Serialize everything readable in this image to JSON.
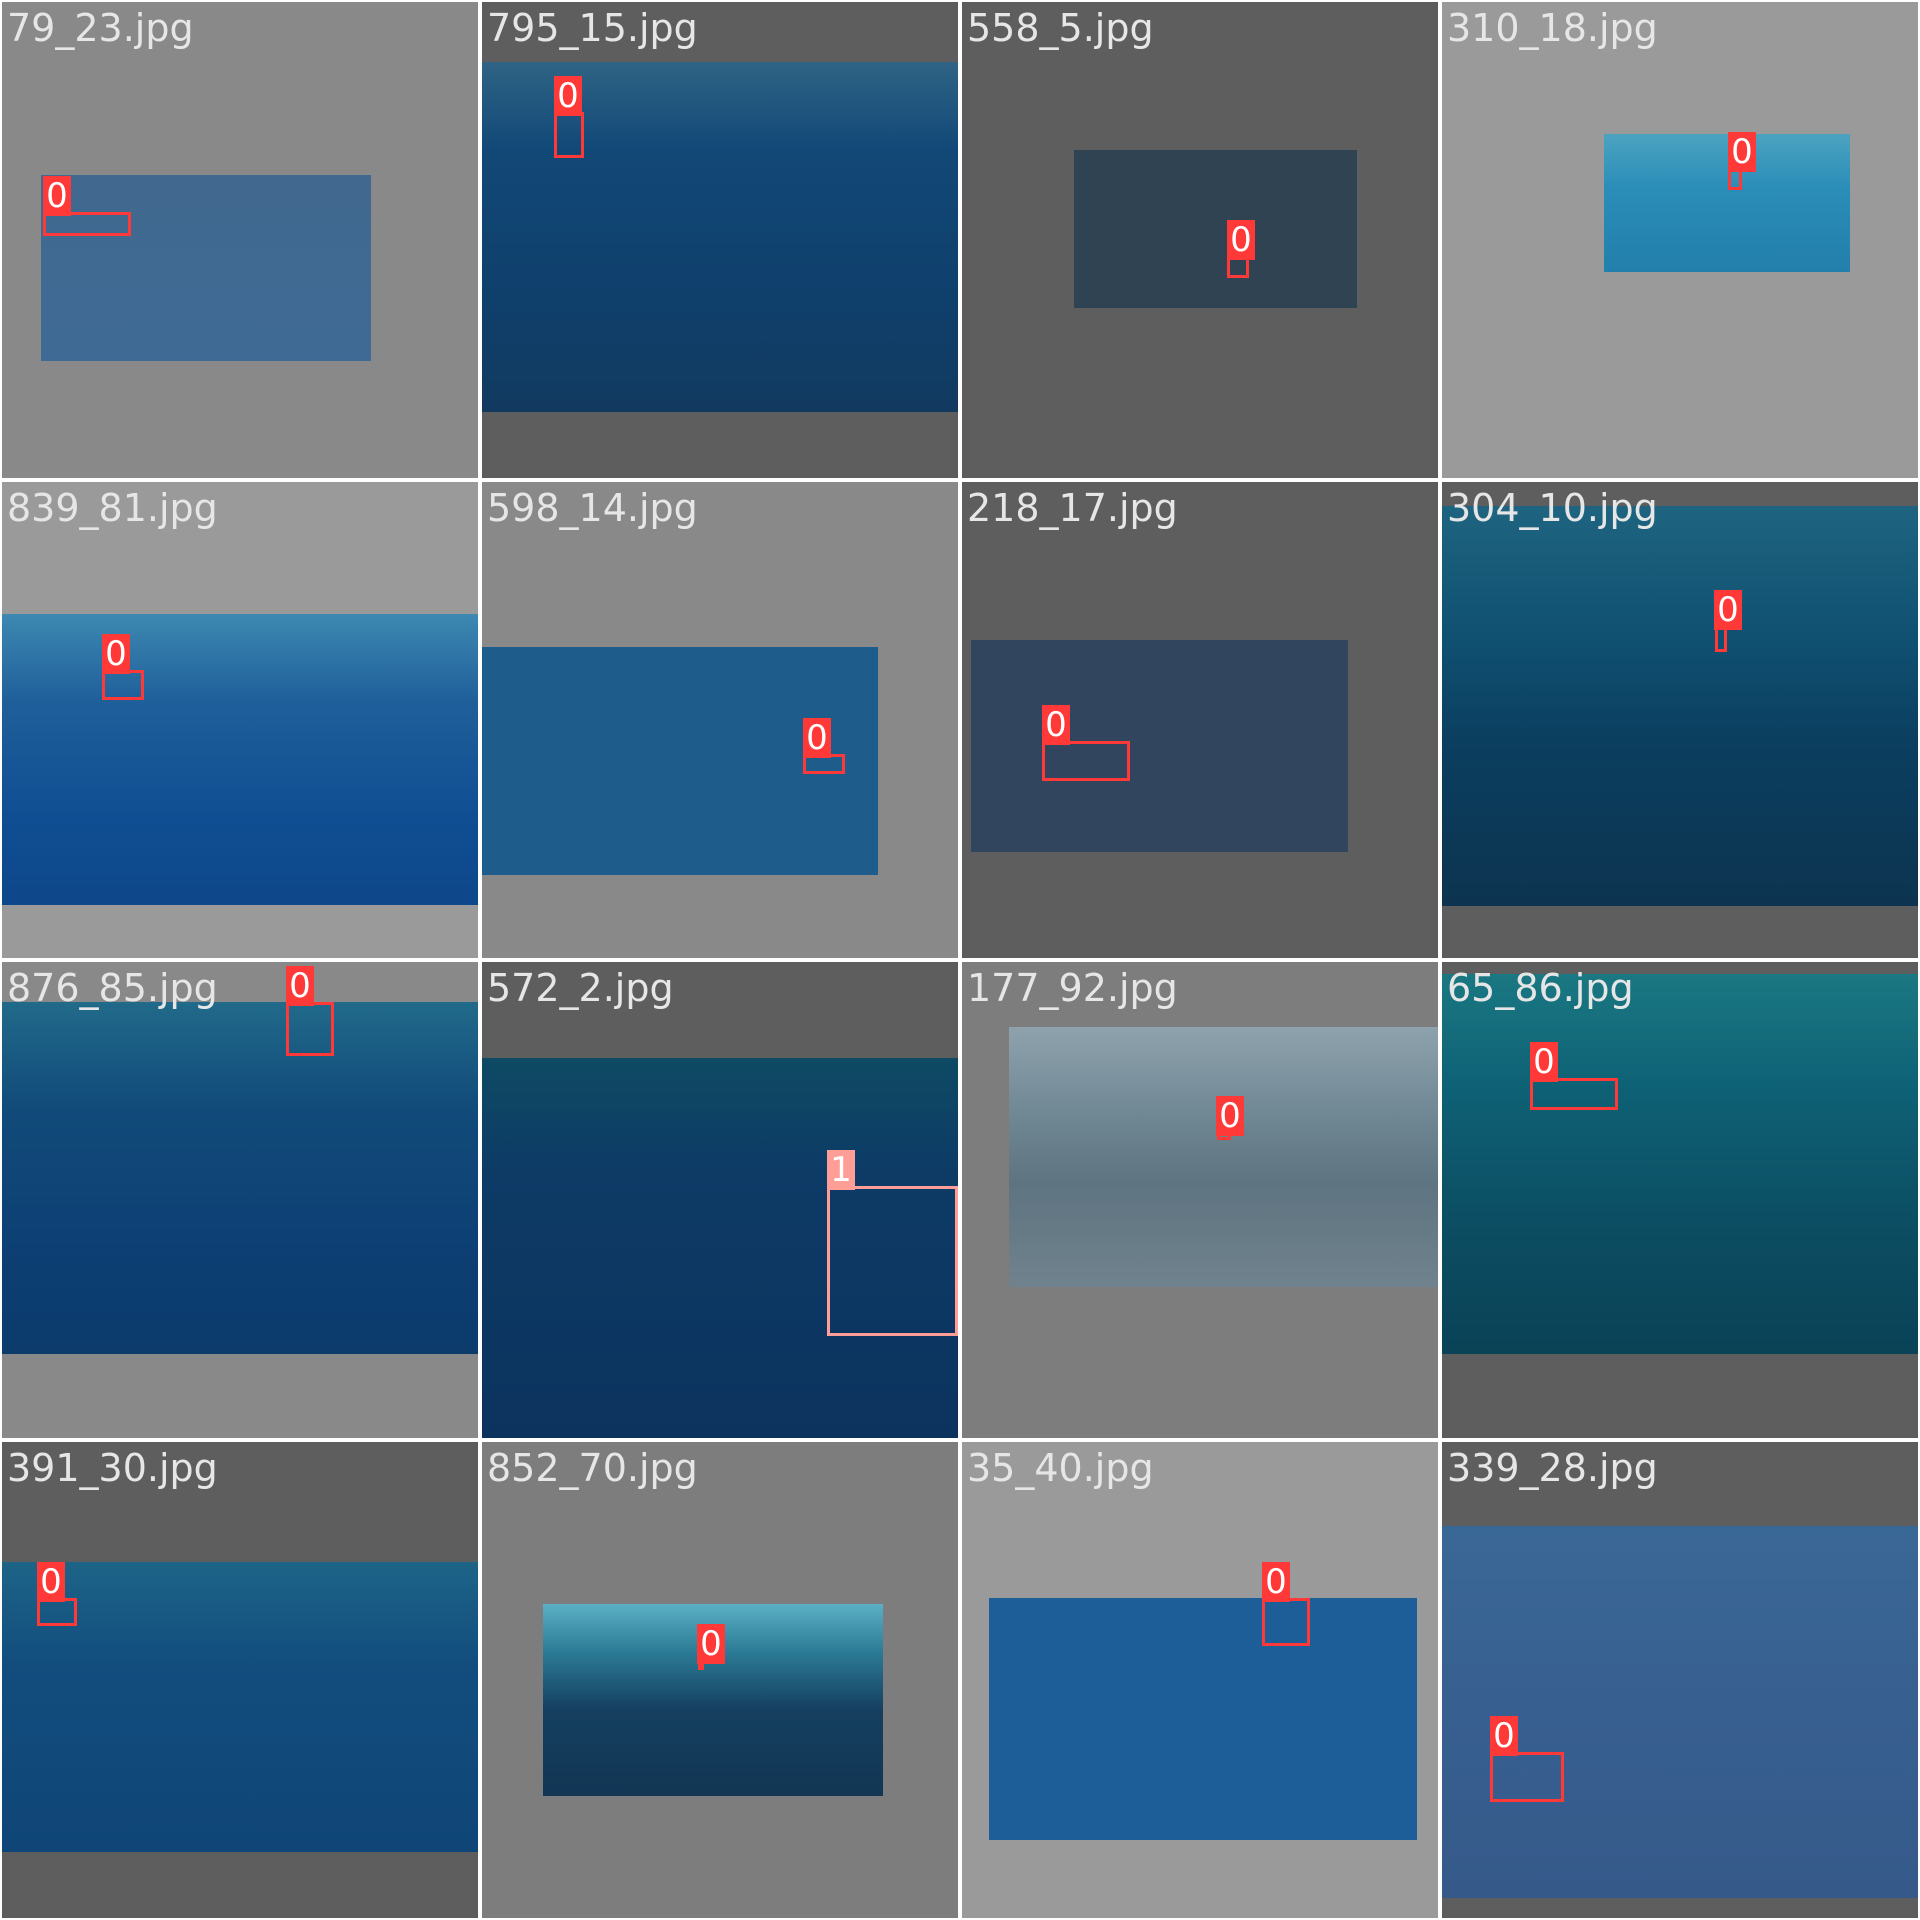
{
  "tiles": [
    {
      "filename": "79_23.jpg",
      "detections": [
        {
          "label": "0"
        }
      ]
    },
    {
      "filename": "795_15.jpg",
      "detections": [
        {
          "label": "0"
        }
      ]
    },
    {
      "filename": "558_5.jpg",
      "detections": [
        {
          "label": "0"
        }
      ]
    },
    {
      "filename": "310_18.jpg",
      "detections": [
        {
          "label": "0"
        }
      ]
    },
    {
      "filename": "839_81.jpg",
      "detections": [
        {
          "label": "0"
        }
      ]
    },
    {
      "filename": "598_14.jpg",
      "detections": [
        {
          "label": "0"
        }
      ]
    },
    {
      "filename": "218_17.jpg",
      "detections": [
        {
          "label": "0"
        }
      ]
    },
    {
      "filename": "304_10.jpg",
      "detections": [
        {
          "label": "0"
        }
      ]
    },
    {
      "filename": "876_85.jpg",
      "detections": [
        {
          "label": "0"
        }
      ]
    },
    {
      "filename": "572_2.jpg",
      "detections": [
        {
          "label": "1"
        }
      ]
    },
    {
      "filename": "177_92.jpg",
      "detections": [
        {
          "label": "0"
        }
      ]
    },
    {
      "filename": "65_86.jpg",
      "detections": [
        {
          "label": "0"
        }
      ]
    },
    {
      "filename": "391_30.jpg",
      "detections": [
        {
          "label": "0"
        }
      ]
    },
    {
      "filename": "852_70.jpg",
      "detections": [
        {
          "label": "0"
        }
      ]
    },
    {
      "filename": "35_40.jpg",
      "detections": [
        {
          "label": "0"
        }
      ]
    },
    {
      "filename": "339_28.jpg",
      "detections": [
        {
          "label": "0"
        }
      ]
    }
  ],
  "colors": {
    "class_0": "#ff3838",
    "class_1": "#ff9d97",
    "filename_text": "#e6e6e6"
  }
}
